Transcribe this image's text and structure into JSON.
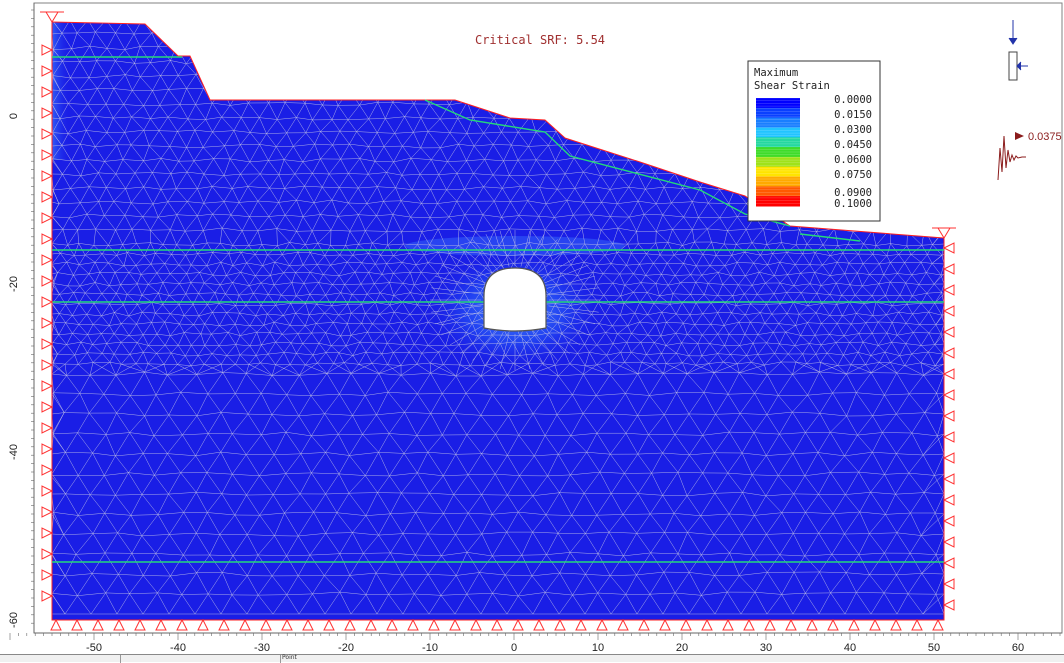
{
  "header": {
    "critical_srf": "Critical SRF: 5.54"
  },
  "legend": {
    "title_line1": "Maximum",
    "title_line2": "Shear Strain",
    "values": [
      "0.0000",
      "0.0150",
      "0.0300",
      "0.0450",
      "0.0600",
      "0.0750",
      "0.0900",
      "0.1000"
    ],
    "colors": [
      "#0000ff",
      "#0a40ff",
      "#1a7fff",
      "#22c4ff",
      "#25d8a0",
      "#3fdc2a",
      "#9fe21a",
      "#ffe400",
      "#ffaa00",
      "#ff5a00",
      "#ff0000"
    ]
  },
  "load_readout": {
    "value": "0.0375"
  },
  "axes": {
    "x_ticks": [
      "-50",
      "-40",
      "-30",
      "-20",
      "-10",
      "0",
      "10",
      "20",
      "30",
      "40",
      "50",
      "60"
    ],
    "y_ticks": [
      "0",
      "-20",
      "-40",
      "-60"
    ]
  },
  "status_bar": {
    "text": "Point"
  },
  "colors": {
    "mesh_fill": "#1a1ee6",
    "mesh_line": "#c8c8e6",
    "material_boundary": "#25d87a",
    "support": "#ff3030",
    "surface": "#ff2020"
  }
}
